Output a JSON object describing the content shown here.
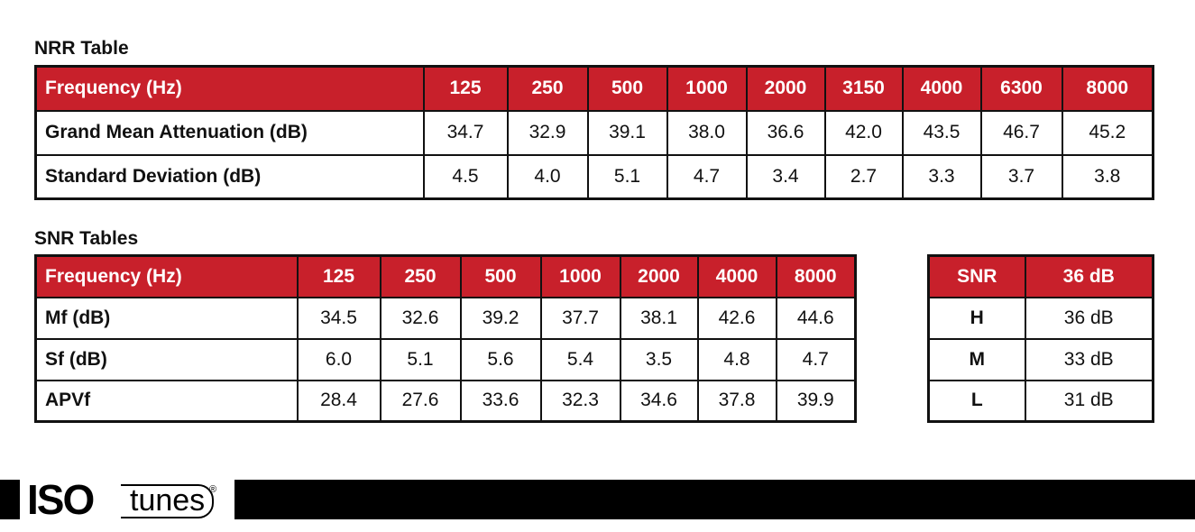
{
  "nrr": {
    "title": "NRR Table",
    "header": [
      "Frequency (Hz)",
      "125",
      "250",
      "500",
      "1000",
      "2000",
      "3150",
      "4000",
      "6300",
      "8000"
    ],
    "rows": [
      [
        "Grand Mean Attenuation (dB)",
        "34.7",
        "32.9",
        "39.1",
        "38.0",
        "36.6",
        "42.0",
        "43.5",
        "46.7",
        "45.2"
      ],
      [
        "Standard Deviation (dB)",
        "4.5",
        "4.0",
        "5.1",
        "4.7",
        "3.4",
        "2.7",
        "3.3",
        "3.7",
        "3.8"
      ]
    ]
  },
  "snr": {
    "title": "SNR Tables",
    "header": [
      "Frequency (Hz)",
      "125",
      "250",
      "500",
      "1000",
      "2000",
      "4000",
      "8000"
    ],
    "rows": [
      [
        "Mf (dB)",
        "34.5",
        "32.6",
        "39.2",
        "37.7",
        "38.1",
        "42.6",
        "44.6"
      ],
      [
        "Sf (dB)",
        "6.0",
        "5.1",
        "5.6",
        "5.4",
        "3.5",
        "4.8",
        "4.7"
      ],
      [
        "APVf",
        "28.4",
        "27.6",
        "33.6",
        "32.3",
        "34.6",
        "37.8",
        "39.9"
      ]
    ]
  },
  "snr_summary": {
    "header": [
      "SNR",
      "36 dB"
    ],
    "rows": [
      [
        "H",
        "36 dB"
      ],
      [
        "M",
        "33 dB"
      ],
      [
        "L",
        "31 dB"
      ]
    ]
  },
  "logo": {
    "iso": "ISO",
    "tunes": "tunes",
    "reg": "®"
  },
  "colors": {
    "header_red": "#c8202b",
    "border": "#111111"
  }
}
